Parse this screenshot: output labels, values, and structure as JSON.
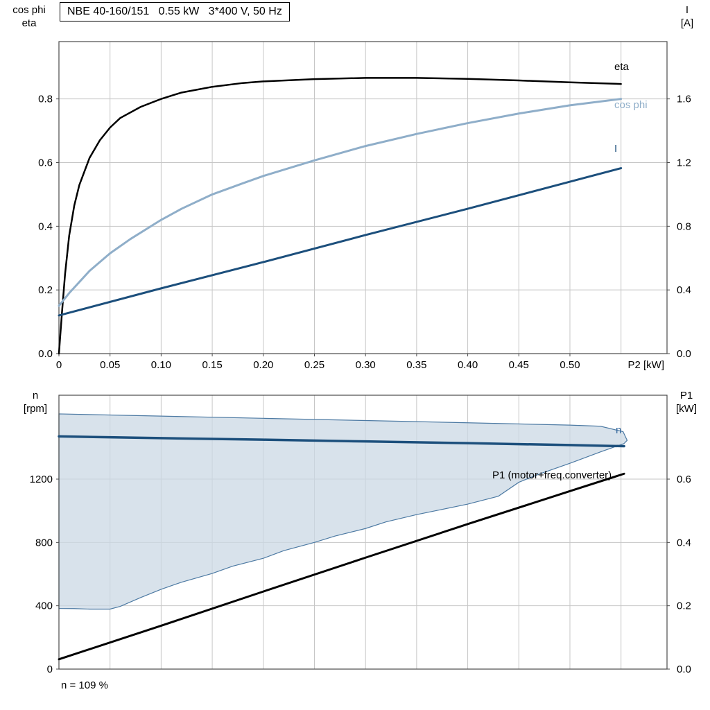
{
  "title_box": "NBE 40-160/151   0.55 kW   3*400 V, 50 Hz",
  "footer_note": "n = 109 %",
  "axis_corner_labels": {
    "top_left": "cos phi\neta",
    "top_right": "I\n[A]",
    "bottom_left": "n\n[rpm]",
    "bottom_right": "P1\n[kW]"
  },
  "curve_labels": {
    "eta": "eta",
    "cos_phi": "cos phi",
    "current": "I",
    "speed": "n",
    "p1": "P1 (motor+freq.converter)"
  },
  "palette": {
    "eta_line": "#000000",
    "cos_phi_line": "#8FAEC9",
    "current_line": "#1C4F7C",
    "speed_line": "#1C4F7C",
    "p1_line": "#000000",
    "region_fill": "#CBD8E4",
    "region_stroke": "#4D7AA3",
    "grid": "#C6C6C6",
    "border": "#4A4A4A"
  },
  "style": {
    "grid": "#C6C6C6",
    "border": "#4A4A4A"
  },
  "chart_data": [
    {
      "type": "line",
      "title": "NBE 40-160/151   0.55 kW   3*400 V, 50 Hz",
      "xlabel": "P2 [kW]",
      "ylabel_left": "cos phi / eta",
      "ylabel_right": "I [A]",
      "xlim": [
        0,
        0.595
      ],
      "ylim_left": [
        0,
        0.98
      ],
      "ylim_right": [
        0,
        1.96
      ],
      "x_gridlines": [
        0.05,
        0.1,
        0.15,
        0.2,
        0.25,
        0.3,
        0.35,
        0.4,
        0.45,
        0.5,
        0.55
      ],
      "y_gridlines": [
        0.2,
        0.4,
        0.6,
        0.8
      ],
      "x_axis_label": "P2 [kW]",
      "x_ticks": [
        {
          "v": 0,
          "label": "0"
        },
        {
          "v": 0.05,
          "label": "0.05"
        },
        {
          "v": 0.1,
          "label": "0.10"
        },
        {
          "v": 0.15,
          "label": "0.15"
        },
        {
          "v": 0.2,
          "label": "0.20"
        },
        {
          "v": 0.25,
          "label": "0.25"
        },
        {
          "v": 0.3,
          "label": "0.30"
        },
        {
          "v": 0.35,
          "label": "0.35"
        },
        {
          "v": 0.4,
          "label": "0.40"
        },
        {
          "v": 0.45,
          "label": "0.45"
        },
        {
          "v": 0.5,
          "label": "0.50"
        }
      ],
      "y_ticks_left": [
        {
          "v": 0.0,
          "label": "0.0"
        },
        {
          "v": 0.2,
          "label": "0.2"
        },
        {
          "v": 0.4,
          "label": "0.4"
        },
        {
          "v": 0.6,
          "label": "0.6"
        },
        {
          "v": 0.8,
          "label": "0.8"
        }
      ],
      "y_ticks_right": [
        {
          "v": 0.0,
          "label": "0.0"
        },
        {
          "v": 0.4,
          "label": "0.4"
        },
        {
          "v": 0.8,
          "label": "0.8"
        },
        {
          "v": 1.2,
          "label": "1.2"
        },
        {
          "v": 1.6,
          "label": "1.6"
        }
      ],
      "series": [
        {
          "name": "eta",
          "axis": "left",
          "color": "#000000",
          "width": 2.5,
          "points": [
            [
              0,
              0
            ],
            [
              0.003,
              0.13
            ],
            [
              0.006,
              0.25
            ],
            [
              0.01,
              0.37
            ],
            [
              0.015,
              0.465
            ],
            [
              0.02,
              0.53
            ],
            [
              0.03,
              0.615
            ],
            [
              0.04,
              0.67
            ],
            [
              0.05,
              0.71
            ],
            [
              0.06,
              0.74
            ],
            [
              0.08,
              0.775
            ],
            [
              0.1,
              0.8
            ],
            [
              0.12,
              0.82
            ],
            [
              0.15,
              0.838
            ],
            [
              0.18,
              0.85
            ],
            [
              0.2,
              0.855
            ],
            [
              0.25,
              0.862
            ],
            [
              0.3,
              0.866
            ],
            [
              0.35,
              0.866
            ],
            [
              0.4,
              0.863
            ],
            [
              0.45,
              0.858
            ],
            [
              0.5,
              0.852
            ],
            [
              0.55,
              0.847
            ]
          ]
        },
        {
          "name": "cos-phi",
          "axis": "left",
          "color": "#8FAEC9",
          "width": 3,
          "points": [
            [
              0,
              0.15
            ],
            [
              0.01,
              0.19
            ],
            [
              0.02,
              0.225
            ],
            [
              0.03,
              0.26
            ],
            [
              0.05,
              0.315
            ],
            [
              0.07,
              0.36
            ],
            [
              0.1,
              0.42
            ],
            [
              0.12,
              0.455
            ],
            [
              0.15,
              0.5
            ],
            [
              0.18,
              0.535
            ],
            [
              0.2,
              0.558
            ],
            [
              0.25,
              0.607
            ],
            [
              0.3,
              0.652
            ],
            [
              0.35,
              0.69
            ],
            [
              0.4,
              0.724
            ],
            [
              0.45,
              0.754
            ],
            [
              0.5,
              0.78
            ],
            [
              0.55,
              0.8
            ]
          ]
        },
        {
          "name": "current",
          "axis": "right",
          "color": "#1C4F7C",
          "width": 3,
          "points": [
            [
              0,
              0.24
            ],
            [
              0.1,
              0.41
            ],
            [
              0.2,
              0.575
            ],
            [
              0.3,
              0.745
            ],
            [
              0.4,
              0.91
            ],
            [
              0.5,
              1.08
            ],
            [
              0.55,
              1.165
            ]
          ]
        }
      ]
    },
    {
      "type": "line",
      "title": "",
      "xlabel": "",
      "ylabel_left": "n [rpm]",
      "ylabel_right": "P1 [kW]",
      "xlim": [
        0,
        0.595
      ],
      "ylim_left": [
        0,
        1730
      ],
      "ylim_right": [
        0,
        0.865
      ],
      "x_gridlines": [
        0.05,
        0.1,
        0.15,
        0.2,
        0.25,
        0.3,
        0.35,
        0.4,
        0.45,
        0.5,
        0.55
      ],
      "y_gridlines": [
        400,
        800,
        1200
      ],
      "x_axis_label": "",
      "x_ticks": [],
      "y_ticks_left": [
        {
          "v": 0,
          "label": "0"
        },
        {
          "v": 400,
          "label": "400"
        },
        {
          "v": 800,
          "label": "800"
        },
        {
          "v": 1200,
          "label": "1200"
        }
      ],
      "y_ticks_right": [
        {
          "v": 0.0,
          "label": "0.0"
        },
        {
          "v": 0.2,
          "label": "0.2"
        },
        {
          "v": 0.4,
          "label": "0.4"
        },
        {
          "v": 0.6,
          "label": "0.6"
        }
      ],
      "region": {
        "name": "speed-operating-range",
        "fill": "#CBD8E4",
        "opacity": 0.75,
        "stroke": "#4D7AA3",
        "points": [
          [
            0,
            1612
          ],
          [
            0.1,
            1598
          ],
          [
            0.2,
            1584
          ],
          [
            0.3,
            1570
          ],
          [
            0.4,
            1556
          ],
          [
            0.5,
            1541
          ],
          [
            0.53,
            1534
          ],
          [
            0.552,
            1500
          ],
          [
            0.556,
            1445
          ],
          [
            0.553,
            1425
          ],
          [
            0.53,
            1372
          ],
          [
            0.5,
            1300
          ],
          [
            0.47,
            1232
          ],
          [
            0.45,
            1180
          ],
          [
            0.43,
            1092
          ],
          [
            0.4,
            1042
          ],
          [
            0.37,
            1002
          ],
          [
            0.35,
            976
          ],
          [
            0.32,
            930
          ],
          [
            0.3,
            888
          ],
          [
            0.27,
            840
          ],
          [
            0.25,
            800
          ],
          [
            0.22,
            748
          ],
          [
            0.2,
            700
          ],
          [
            0.17,
            650
          ],
          [
            0.15,
            604
          ],
          [
            0.12,
            549
          ],
          [
            0.1,
            504
          ],
          [
            0.08,
            452
          ],
          [
            0.06,
            396
          ],
          [
            0.05,
            379
          ],
          [
            0.03,
            379
          ],
          [
            0.015,
            382
          ],
          [
            0,
            383
          ]
        ]
      },
      "series": [
        {
          "name": "speed-n",
          "axis": "left",
          "color": "#1C4F7C",
          "width": 3.5,
          "points": [
            [
              0,
              1470
            ],
            [
              0.1,
              1459
            ],
            [
              0.2,
              1449
            ],
            [
              0.3,
              1438
            ],
            [
              0.4,
              1427
            ],
            [
              0.5,
              1415
            ],
            [
              0.553,
              1408
            ]
          ]
        },
        {
          "name": "p1-motor-freq-converter",
          "axis": "right",
          "color": "#000000",
          "width": 3,
          "points": [
            [
              0,
              0.031
            ],
            [
              0.1,
              0.137
            ],
            [
              0.2,
              0.245
            ],
            [
              0.3,
              0.352
            ],
            [
              0.4,
              0.458
            ],
            [
              0.5,
              0.562
            ],
            [
              0.553,
              0.617
            ]
          ]
        }
      ]
    }
  ]
}
